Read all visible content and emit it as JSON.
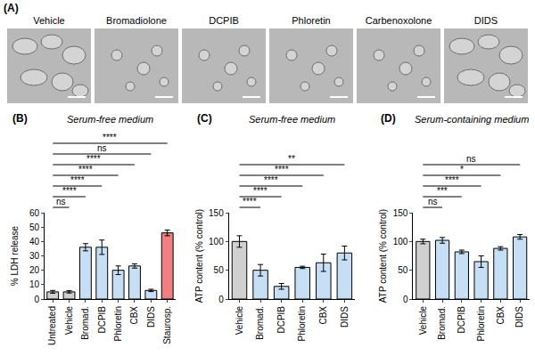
{
  "panel_a": {
    "label": "(A)",
    "images": [
      "Vehicle",
      "Bromadiolone",
      "DCPIB",
      "Phloretin",
      "Carbenoxolone",
      "DIDS"
    ]
  },
  "chart_data": [
    {
      "panel": "(B)",
      "type": "bar",
      "title": "Serum-free medium",
      "y_label": "% LDH release",
      "categories": [
        "Untreated",
        "Vehicle",
        "Bromad.",
        "DCPIB",
        "Phloretin",
        "CBX",
        "DIDS",
        "Staurosp."
      ],
      "values": [
        5,
        5,
        36,
        36,
        20,
        23,
        6,
        46
      ],
      "errors": [
        1,
        0.8,
        2.5,
        5,
        3,
        1.5,
        0.8,
        2
      ],
      "colors": [
        "#d0d0d0",
        "#d0d0d0",
        "#c6dff5",
        "#c6dff5",
        "#c6dff5",
        "#c6dff5",
        "#c6dff5",
        "#f08080"
      ],
      "ylim": [
        0,
        60
      ],
      "yticks": [
        0,
        10,
        20,
        30,
        40,
        50,
        60
      ],
      "comparisons": [
        {
          "from": "Untreated",
          "to": "Vehicle",
          "label": "ns"
        },
        {
          "from": "Untreated",
          "to": "Bromad.",
          "label": "****"
        },
        {
          "from": "Untreated",
          "to": "DCPIB",
          "label": "****"
        },
        {
          "from": "Untreated",
          "to": "Phloretin",
          "label": "****"
        },
        {
          "from": "Untreated",
          "to": "CBX",
          "label": "****"
        },
        {
          "from": "Untreated",
          "to": "DIDS",
          "label": "ns"
        },
        {
          "from": "Untreated",
          "to": "Staurosp.",
          "label": "****"
        }
      ]
    },
    {
      "panel": "(C)",
      "type": "bar",
      "title": "Serum-free medium",
      "y_label": "ATP content (% control)",
      "categories": [
        "Vehicle",
        "Bromad.",
        "DCPIB",
        "Phloretin",
        "CBX",
        "DIDS"
      ],
      "values": [
        100,
        50,
        22,
        55,
        63,
        80
      ],
      "errors": [
        10,
        10,
        5,
        2,
        15,
        12
      ],
      "colors": [
        "#d0d0d0",
        "#c6dff5",
        "#c6dff5",
        "#c6dff5",
        "#c6dff5",
        "#c6dff5"
      ],
      "ylim": [
        0,
        150
      ],
      "yticks": [
        0,
        50,
        100,
        150
      ],
      "comparisons": [
        {
          "from": "Vehicle",
          "to": "Bromad.",
          "label": "****"
        },
        {
          "from": "Vehicle",
          "to": "DCPIB",
          "label": "****"
        },
        {
          "from": "Vehicle",
          "to": "Phloretin",
          "label": "****"
        },
        {
          "from": "Vehicle",
          "to": "CBX",
          "label": "****"
        },
        {
          "from": "Vehicle",
          "to": "DIDS",
          "label": "**"
        }
      ]
    },
    {
      "panel": "(D)",
      "type": "bar",
      "title": "Serum-containing medium",
      "y_label": "ATP content (% control)",
      "categories": [
        "Vehicle",
        "Bromad.",
        "DCPIB",
        "Phloretin",
        "CBX",
        "DIDS"
      ],
      "values": [
        100,
        102,
        82,
        65,
        88,
        108
      ],
      "errors": [
        4,
        5,
        3,
        10,
        3,
        4
      ],
      "colors": [
        "#d0d0d0",
        "#c6dff5",
        "#c6dff5",
        "#c6dff5",
        "#c6dff5",
        "#c6dff5"
      ],
      "ylim": [
        0,
        150
      ],
      "yticks": [
        0,
        50,
        100,
        150
      ],
      "comparisons": [
        {
          "from": "Vehicle",
          "to": "Bromad.",
          "label": "ns"
        },
        {
          "from": "Vehicle",
          "to": "DCPIB",
          "label": "***"
        },
        {
          "from": "Vehicle",
          "to": "Phloretin",
          "label": "****"
        },
        {
          "from": "Vehicle",
          "to": "CBX",
          "label": "*"
        },
        {
          "from": "Vehicle",
          "to": "DIDS",
          "label": "ns"
        }
      ]
    }
  ]
}
